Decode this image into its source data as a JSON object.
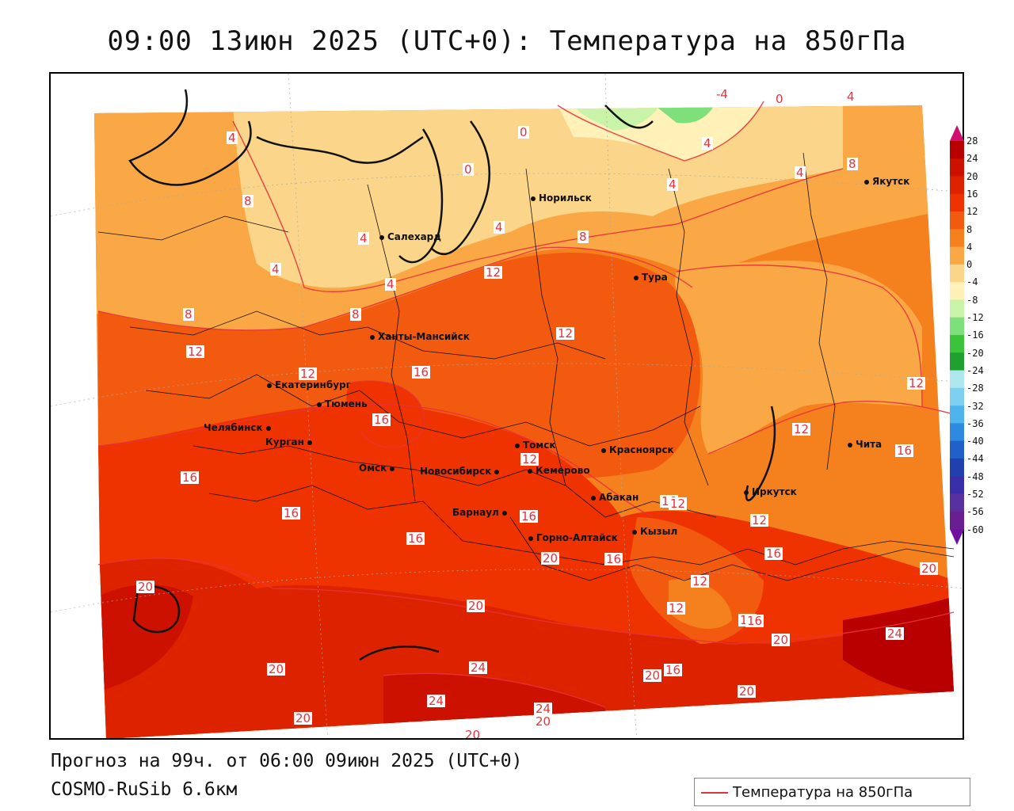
{
  "title": "09:00 13июн 2025 (UTC+0): Температура на 850гПа",
  "footer": {
    "forecast": "Прогноз на 99ч. от 06:00 09июн 2025 (UTC+0)",
    "model": "COSMO-RuSib 6.6км"
  },
  "key": {
    "label": "Температура на 850гПа",
    "color": "#e8323a"
  },
  "legend": {
    "ticks": [
      "28",
      "24",
      "20",
      "16",
      "12",
      "8",
      "4",
      "0",
      "-4",
      "-8",
      "-12",
      "-16",
      "-20",
      "-24",
      "-28",
      "-32",
      "-36",
      "-40",
      "-44",
      "-48",
      "-52",
      "-56",
      "-60"
    ],
    "colors": [
      "#b80000",
      "#cc1100",
      "#dd2200",
      "#ee3300",
      "#f25a10",
      "#f5801e",
      "#f9a845",
      "#fbd58a",
      "#fff1b8",
      "#c8f3a8",
      "#7de07a",
      "#3bc43b",
      "#20a02e",
      "#aee8ee",
      "#7fd0f0",
      "#4fb3ee",
      "#2d8ae0",
      "#2060c8",
      "#2040b0",
      "#3a2fa8",
      "#5a2fa0",
      "#6a1f90"
    ],
    "top_color": "#d01070",
    "bottom_color": "#7010a0"
  },
  "cities": [
    {
      "name": "Норильск"
    },
    {
      "name": "Якутск"
    },
    {
      "name": "Салехард"
    },
    {
      "name": "Тура"
    },
    {
      "name": "Ханты-Мансийск"
    },
    {
      "name": "Екатеринбург"
    },
    {
      "name": "Тюмень"
    },
    {
      "name": "Челябинск"
    },
    {
      "name": "Курган"
    },
    {
      "name": "Омск"
    },
    {
      "name": "Новосибирск"
    },
    {
      "name": "Томск"
    },
    {
      "name": "Кемерово"
    },
    {
      "name": "Красноярск"
    },
    {
      "name": "Барнаул"
    },
    {
      "name": "Абакан"
    },
    {
      "name": "Горно-Алтайск"
    },
    {
      "name": "Кызыл"
    },
    {
      "name": "Иркутск"
    },
    {
      "name": "Чита"
    }
  ],
  "contour_labels": [
    "-4",
    "0",
    "4",
    "0",
    "4",
    "0",
    "4",
    "8",
    "4",
    "8",
    "4",
    "4",
    "4",
    "4",
    "4",
    "8",
    "12",
    "8",
    "8",
    "12",
    "12",
    "12",
    "16",
    "16",
    "12",
    "16",
    "12",
    "12",
    "16",
    "16",
    "16",
    "16",
    "16",
    "20",
    "16",
    "12",
    "12",
    "16",
    "16",
    "20",
    "20",
    "20",
    "12",
    "12",
    "16",
    "20",
    "20",
    "24",
    "24",
    "24",
    "20",
    "20",
    "20",
    "16",
    "20",
    "24",
    "20"
  ]
}
